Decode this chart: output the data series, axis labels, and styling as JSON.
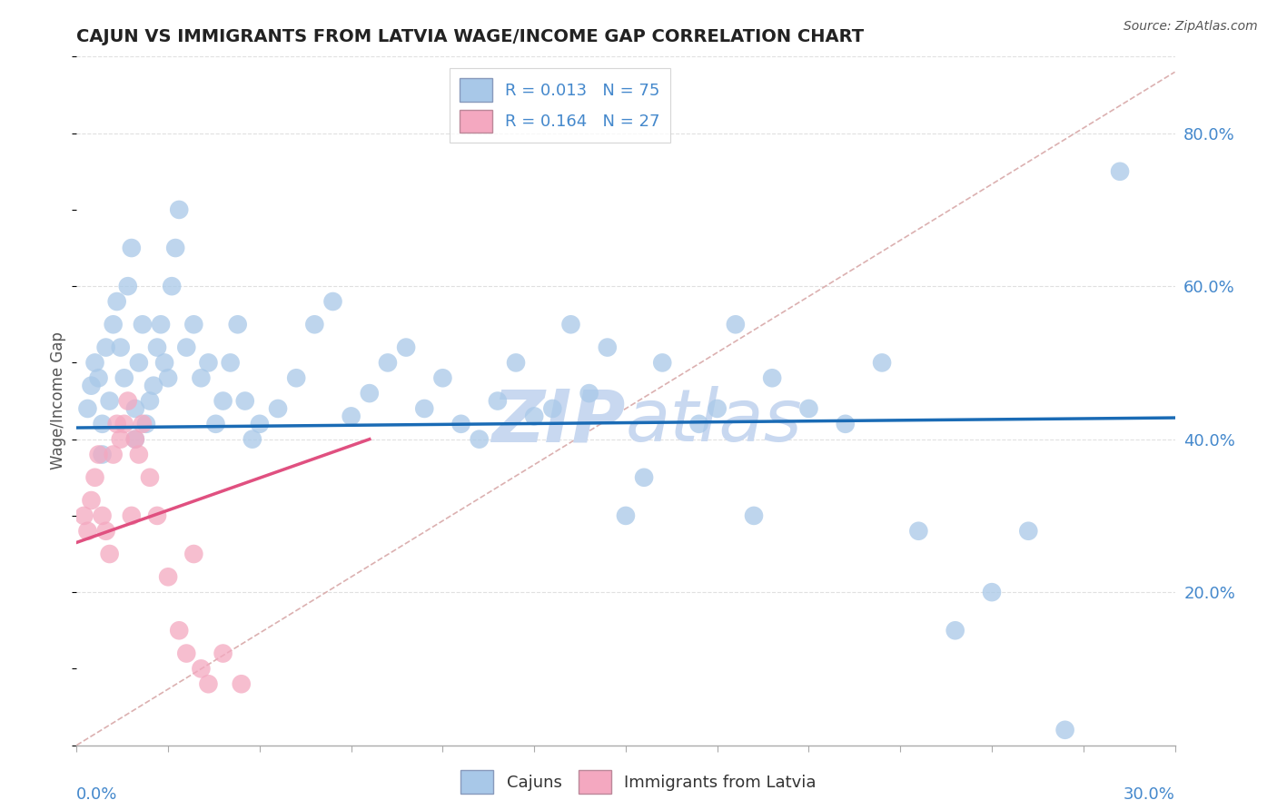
{
  "title": "CAJUN VS IMMIGRANTS FROM LATVIA WAGE/INCOME GAP CORRELATION CHART",
  "source": "Source: ZipAtlas.com",
  "ylabel": "Wage/Income Gap",
  "y_tick_labels": [
    "20.0%",
    "40.0%",
    "60.0%",
    "80.0%"
  ],
  "y_tick_values": [
    0.2,
    0.4,
    0.6,
    0.8
  ],
  "x_range": [
    0.0,
    0.3
  ],
  "y_range": [
    0.0,
    0.9
  ],
  "legend_r1": "R = 0.013",
  "legend_n1": "N = 75",
  "legend_r2": "R = 0.164",
  "legend_n2": "N = 27",
  "legend_label1": "Cajuns",
  "legend_label2": "Immigrants from Latvia",
  "blue_color": "#a8c8e8",
  "pink_color": "#f4a8c0",
  "blue_line_color": "#1a6bb5",
  "pink_line_color": "#e05080",
  "diagonal_color": "#d8a8a8",
  "grid_color": "#e0e0e0",
  "watermark_color": "#c8d8f0",
  "title_color": "#222222",
  "axis_label_color": "#4488cc",
  "cajun_x": [
    0.003,
    0.004,
    0.005,
    0.006,
    0.007,
    0.007,
    0.008,
    0.009,
    0.01,
    0.011,
    0.012,
    0.013,
    0.014,
    0.015,
    0.016,
    0.016,
    0.017,
    0.018,
    0.019,
    0.02,
    0.021,
    0.022,
    0.023,
    0.024,
    0.025,
    0.026,
    0.027,
    0.028,
    0.03,
    0.032,
    0.034,
    0.036,
    0.038,
    0.04,
    0.042,
    0.044,
    0.046,
    0.048,
    0.05,
    0.055,
    0.06,
    0.065,
    0.07,
    0.075,
    0.08,
    0.085,
    0.09,
    0.095,
    0.1,
    0.105,
    0.11,
    0.115,
    0.12,
    0.125,
    0.13,
    0.135,
    0.14,
    0.145,
    0.15,
    0.155,
    0.16,
    0.17,
    0.175,
    0.18,
    0.185,
    0.19,
    0.2,
    0.21,
    0.22,
    0.23,
    0.24,
    0.25,
    0.26,
    0.27,
    0.285
  ],
  "cajun_y": [
    0.44,
    0.47,
    0.5,
    0.48,
    0.42,
    0.38,
    0.52,
    0.45,
    0.55,
    0.58,
    0.52,
    0.48,
    0.6,
    0.65,
    0.44,
    0.4,
    0.5,
    0.55,
    0.42,
    0.45,
    0.47,
    0.52,
    0.55,
    0.5,
    0.48,
    0.6,
    0.65,
    0.7,
    0.52,
    0.55,
    0.48,
    0.5,
    0.42,
    0.45,
    0.5,
    0.55,
    0.45,
    0.4,
    0.42,
    0.44,
    0.48,
    0.55,
    0.58,
    0.43,
    0.46,
    0.5,
    0.52,
    0.44,
    0.48,
    0.42,
    0.4,
    0.45,
    0.5,
    0.43,
    0.44,
    0.55,
    0.46,
    0.52,
    0.3,
    0.35,
    0.5,
    0.42,
    0.44,
    0.55,
    0.3,
    0.48,
    0.44,
    0.42,
    0.5,
    0.28,
    0.15,
    0.2,
    0.28,
    0.02,
    0.75
  ],
  "latvia_x": [
    0.002,
    0.003,
    0.004,
    0.005,
    0.006,
    0.007,
    0.008,
    0.009,
    0.01,
    0.011,
    0.012,
    0.013,
    0.014,
    0.015,
    0.016,
    0.017,
    0.018,
    0.02,
    0.022,
    0.025,
    0.028,
    0.03,
    0.032,
    0.034,
    0.036,
    0.04,
    0.045
  ],
  "latvia_y": [
    0.3,
    0.28,
    0.32,
    0.35,
    0.38,
    0.3,
    0.28,
    0.25,
    0.38,
    0.42,
    0.4,
    0.42,
    0.45,
    0.3,
    0.4,
    0.38,
    0.42,
    0.35,
    0.3,
    0.22,
    0.15,
    0.12,
    0.25,
    0.1,
    0.08,
    0.12,
    0.08
  ],
  "blue_line_y0": 0.415,
  "blue_line_y1": 0.428,
  "pink_line_x0": 0.0,
  "pink_line_y0": 0.265,
  "pink_line_x1": 0.08,
  "pink_line_y1": 0.4
}
